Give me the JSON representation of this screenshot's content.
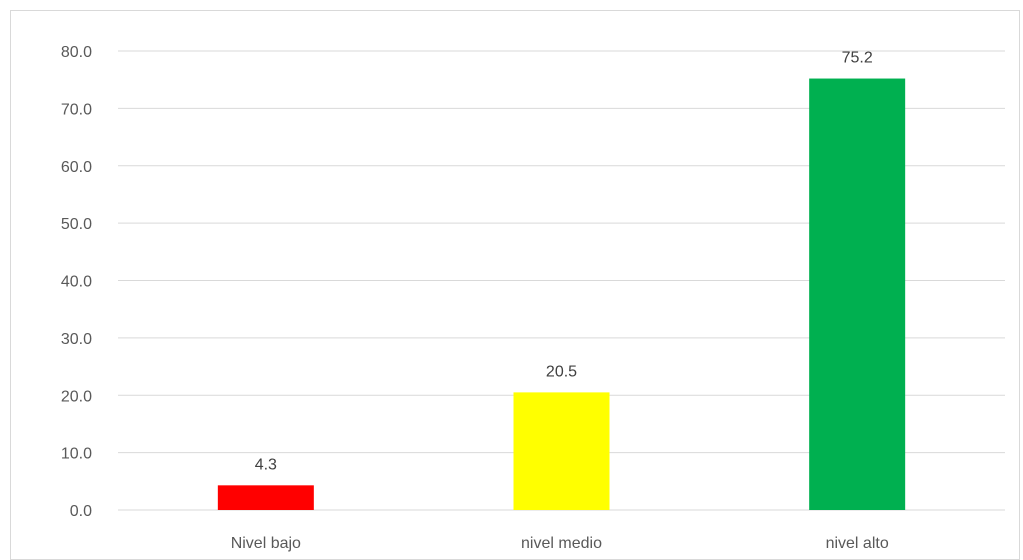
{
  "chart_data": {
    "type": "bar",
    "categories": [
      "Nivel bajo",
      "nivel medio",
      "nivel alto"
    ],
    "values": [
      4.3,
      20.5,
      75.2
    ],
    "value_labels": [
      "4.3",
      "20.5",
      "75.2"
    ],
    "bar_colors": [
      "#ff0000",
      "#ffff00",
      "#00b050"
    ],
    "ylim": [
      0,
      80
    ],
    "yticks": [
      0,
      10,
      20,
      30,
      40,
      50,
      60,
      70,
      80
    ],
    "ytick_labels": [
      "0.0",
      "10.0",
      "20.0",
      "30.0",
      "40.0",
      "50.0",
      "60.0",
      "70.0",
      "80.0"
    ],
    "grid": true,
    "legend": "none",
    "title": "",
    "xlabel": "",
    "ylabel": ""
  }
}
